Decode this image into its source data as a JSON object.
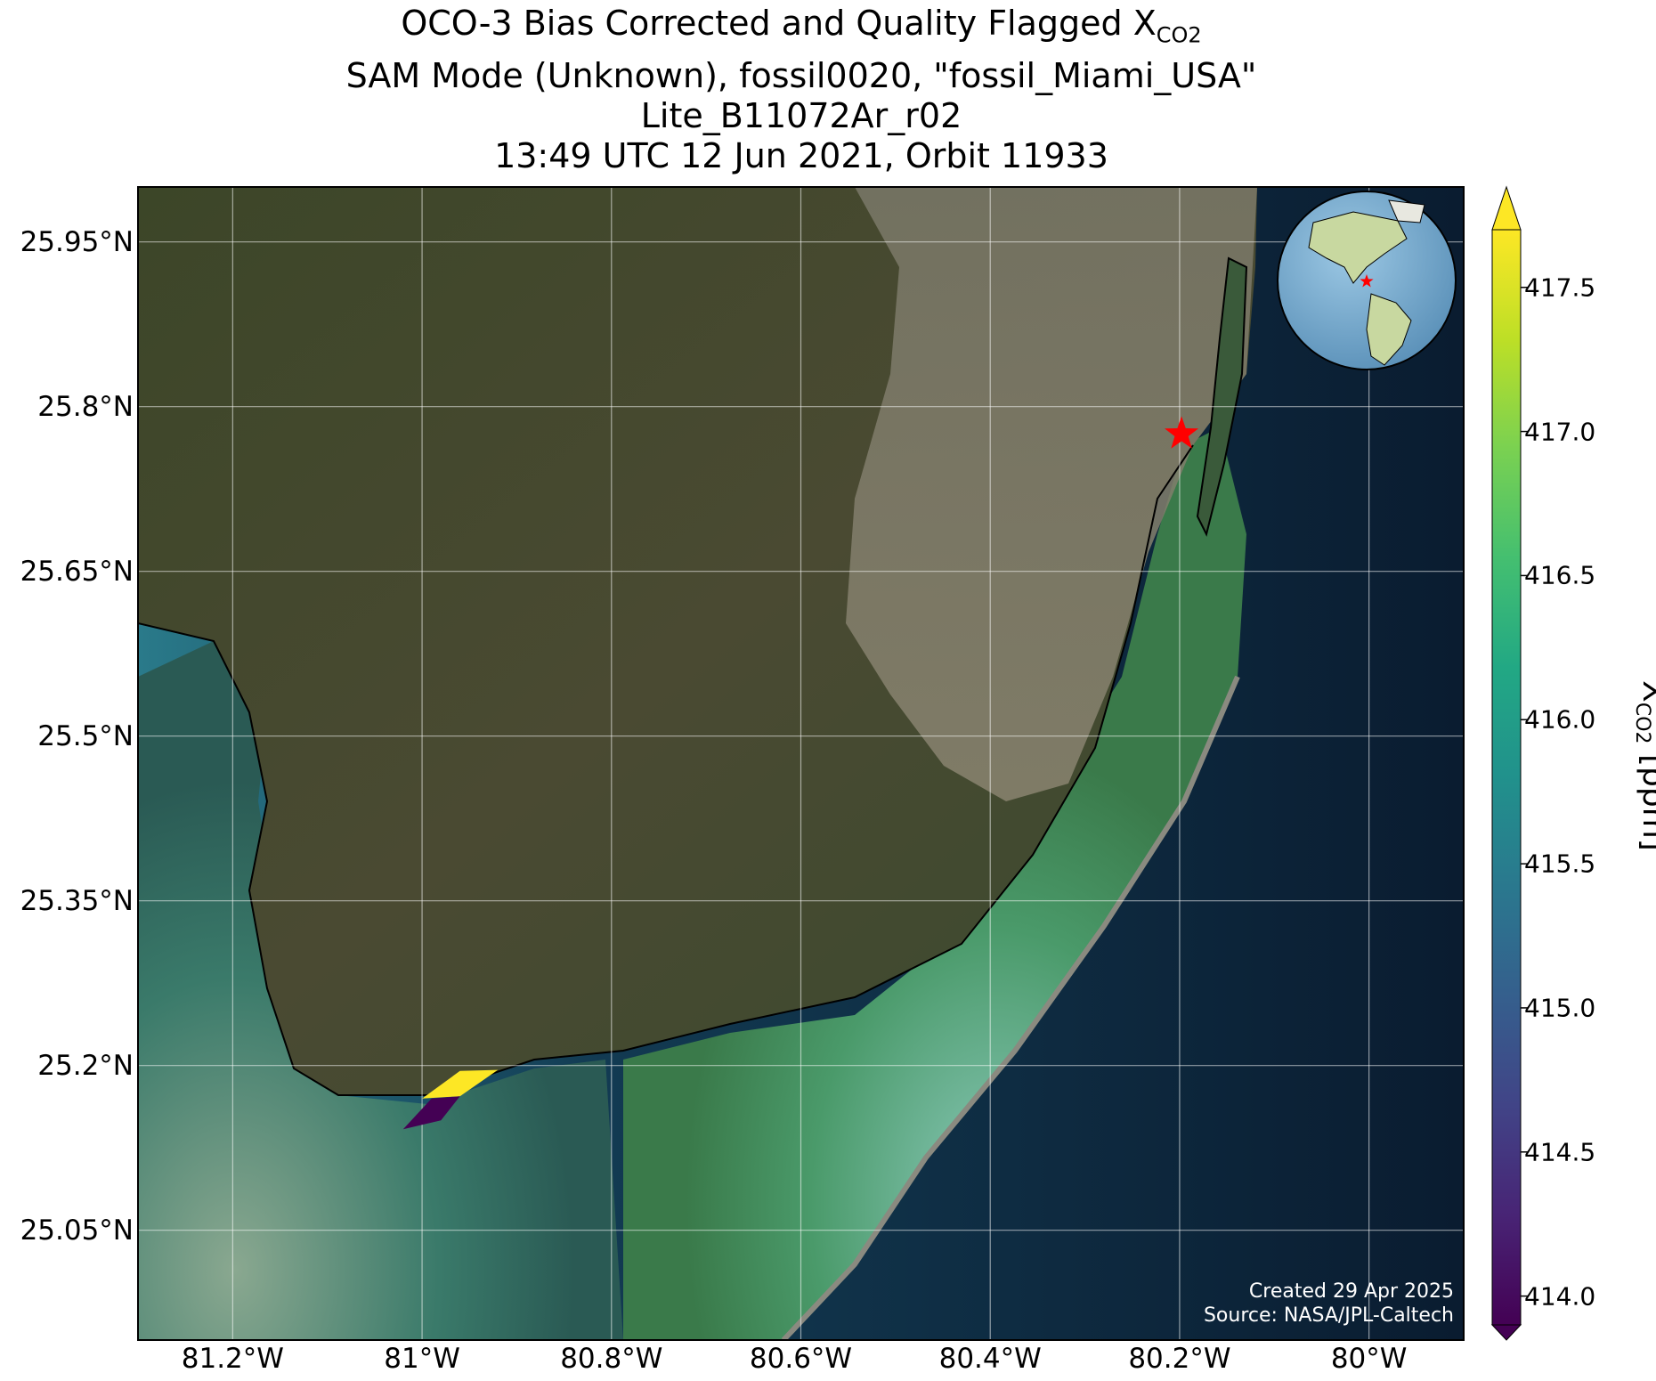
{
  "title": {
    "line1_prefix": "OCO-3 Bias Corrected and Quality Flagged X",
    "line1_sub": "CO2",
    "line2": "SAM Mode (Unknown), fossil0020, \"fossil_Miami_USA\"",
    "line3": "Lite_B11072Ar_r02",
    "line4": "13:49 UTC 12 Jun 2021, Orbit 11933"
  },
  "map": {
    "lat_labels": [
      "25.95°N",
      "25.8°N",
      "25.65°N",
      "25.5°N",
      "25.35°N",
      "25.2°N",
      "25.05°N"
    ],
    "lat_values": [
      25.95,
      25.8,
      25.65,
      25.5,
      25.35,
      25.2,
      25.05
    ],
    "lon_labels": [
      "81.2°W",
      "81°W",
      "80.8°W",
      "80.6°W",
      "80.4°W",
      "80.2°W",
      "80°W"
    ],
    "lon_values": [
      -81.2,
      -81.0,
      -80.8,
      -80.6,
      -80.4,
      -80.2,
      -80.0
    ],
    "lat_range": [
      24.95,
      26.0
    ],
    "lon_range": [
      -81.3,
      -79.9
    ],
    "target_marker": {
      "name": "fossil_Miami_USA",
      "lat": 25.775,
      "lon": -80.198,
      "color": "#ff0000"
    },
    "soundings": [
      {
        "xco2": 417.7,
        "color": "#fde725"
      },
      {
        "xco2": 414.0,
        "color": "#440154"
      }
    ],
    "gridlines": true
  },
  "inset_globe": {
    "marker_color": "#ff0000"
  },
  "credit": {
    "line1": "Created 29 Apr 2025",
    "line2": "Source: NASA/JPL-Caltech"
  },
  "colorbar": {
    "label_prefix": "X",
    "label_sub": "CO2",
    "label_suffix": " [ppm]",
    "ticks": [
      "414.0",
      "414.5",
      "415.0",
      "415.5",
      "416.0",
      "416.5",
      "417.0",
      "417.5"
    ],
    "tick_values": [
      414.0,
      414.5,
      415.0,
      415.5,
      416.0,
      416.5,
      417.0,
      417.5
    ],
    "range": [
      413.9,
      417.7
    ],
    "colormap": "viridis",
    "extend": "both"
  }
}
